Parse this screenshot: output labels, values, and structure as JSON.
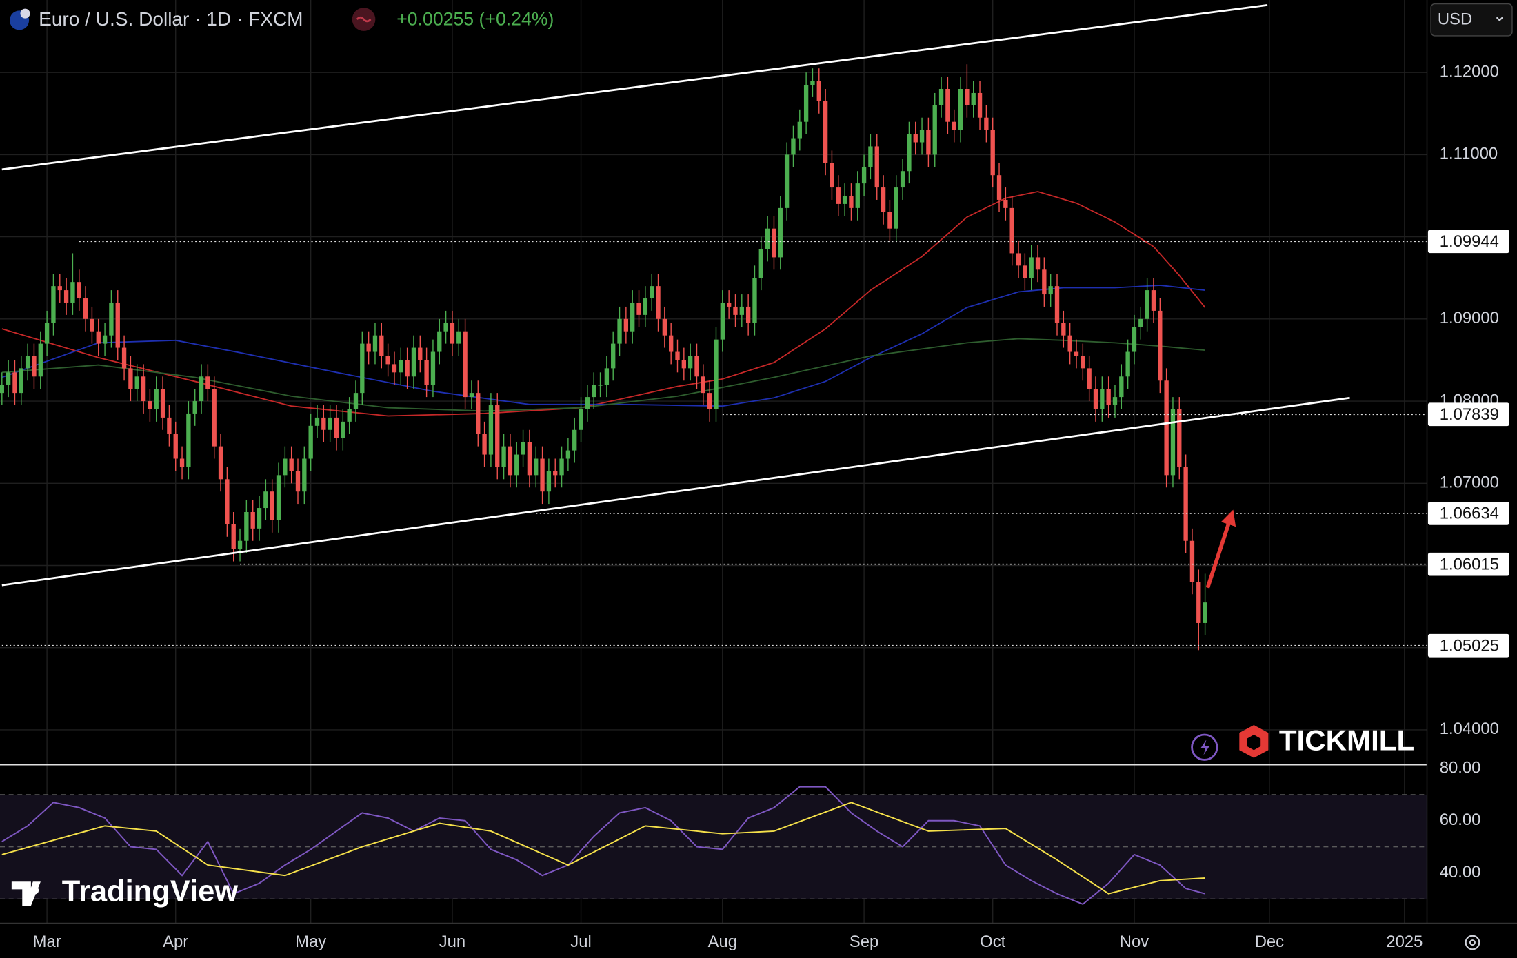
{
  "chart_data": {
    "type": "candlestick",
    "title": "Euro / U.S. Dollar · 1D · FXCM",
    "change": "+0.00255 (+0.24%)",
    "currency": "USD",
    "brand": "TICKMILL",
    "watermark": "TradingView",
    "colors": {
      "up": "#4caf50",
      "down": "#ef5350"
    },
    "open": [
      1.081,
      1.082,
      1.0835,
      1.081,
      1.084,
      1.0855,
      1.083,
      1.087,
      1.0895,
      1.094,
      1.0935,
      1.092,
      1.0945,
      1.0925,
      1.09,
      1.0885,
      1.087,
      1.088,
      1.092,
      1.0865,
      1.084,
      1.0815,
      1.083,
      1.08,
      1.079,
      1.0815,
      1.078,
      1.076,
      1.073,
      1.072,
      1.0785,
      1.08,
      1.083,
      1.0815,
      1.0745,
      1.0705,
      1.065,
      1.062,
      1.063,
      1.0665,
      1.0645,
      1.067,
      1.069,
      1.0655,
      1.071,
      1.073,
      1.0715,
      1.069,
      1.073,
      1.077,
      1.078,
      1.0765,
      1.078,
      1.0755,
      1.0775,
      1.079,
      1.081,
      1.087,
      1.086,
      1.088,
      1.0855,
      1.0845,
      1.0835,
      1.085,
      1.083,
      1.0865,
      1.085,
      1.082,
      1.086,
      1.0885,
      1.0895,
      1.087,
      1.0885,
      1.0805,
      1.081,
      1.076,
      1.0735,
      1.0795,
      1.072,
      1.0745,
      1.071,
      1.0735,
      1.075,
      1.071,
      1.073,
      1.069,
      1.0715,
      1.071,
      1.073,
      1.074,
      1.0765,
      1.079,
      1.0805,
      1.082,
      1.082,
      1.084,
      1.087,
      1.09,
      1.0885,
      1.092,
      1.0905,
      1.0925,
      1.094,
      1.09,
      1.088,
      1.086,
      1.085,
      1.084,
      1.0855,
      1.083,
      1.081,
      1.079,
      1.0875,
      1.092,
      1.0915,
      1.0905,
      1.0915,
      1.0895,
      1.095,
      1.0985,
      1.101,
      1.0975,
      1.1035,
      1.11,
      1.112,
      1.114,
      1.1185,
      1.119,
      1.1165,
      1.109,
      1.106,
      1.104,
      1.105,
      1.1035,
      1.1065,
      1.1085,
      1.111,
      1.106,
      1.103,
      1.101,
      1.106,
      1.108,
      1.1125,
      1.1115,
      1.113,
      1.11,
      1.116,
      1.118,
      1.114,
      1.113,
      1.118,
      1.116,
      1.1175,
      1.1145,
      1.113,
      1.1075,
      1.1045,
      1.1035,
      1.098,
      1.0965,
      1.095,
      1.0975,
      1.096,
      1.093,
      1.094,
      1.0895,
      1.088,
      1.086,
      1.0855,
      1.084,
      1.0815,
      1.079,
      1.0815,
      1.0795,
      1.0805,
      1.083,
      1.086,
      1.089,
      1.09,
      1.0935,
      1.091,
      1.0825,
      1.071,
      1.079,
      1.072,
      1.063,
      1.058,
      1.053
    ],
    "high": [
      1.0835,
      1.085,
      1.085,
      1.0855,
      1.087,
      1.087,
      1.0885,
      1.091,
      1.0955,
      1.0955,
      1.095,
      1.098,
      1.096,
      1.094,
      1.0915,
      1.09,
      1.0895,
      1.0935,
      1.0935,
      1.088,
      1.0855,
      1.0845,
      1.0845,
      1.0815,
      1.083,
      1.083,
      1.0795,
      1.0775,
      1.0745,
      1.08,
      1.0815,
      1.0845,
      1.0845,
      1.083,
      1.076,
      1.072,
      1.0665,
      1.0645,
      1.068,
      1.068,
      1.0685,
      1.0705,
      1.0705,
      1.0725,
      1.0745,
      1.0745,
      1.073,
      1.0745,
      1.0785,
      1.0795,
      1.0795,
      1.0795,
      1.0795,
      1.079,
      1.0805,
      1.0825,
      1.0885,
      1.0885,
      1.0895,
      1.0895,
      1.087,
      1.086,
      1.0865,
      1.0865,
      1.088,
      1.088,
      1.0865,
      1.0875,
      1.09,
      1.091,
      1.091,
      1.09,
      1.09,
      1.0825,
      1.0825,
      1.0775,
      1.081,
      1.081,
      1.076,
      1.076,
      1.075,
      1.0765,
      1.0765,
      1.0745,
      1.0745,
      1.073,
      1.073,
      1.0745,
      1.0755,
      1.078,
      1.0805,
      1.082,
      1.0835,
      1.0835,
      1.0855,
      1.0885,
      1.0915,
      1.0915,
      1.0935,
      1.0935,
      1.094,
      1.0955,
      1.0955,
      1.0915,
      1.0895,
      1.0875,
      1.0865,
      1.087,
      1.087,
      1.0845,
      1.0825,
      1.089,
      1.0935,
      1.0935,
      1.093,
      1.093,
      1.093,
      1.0965,
      1.1,
      1.1025,
      1.1025,
      1.105,
      1.1115,
      1.1135,
      1.1155,
      1.12,
      1.1205,
      1.1205,
      1.118,
      1.1105,
      1.1075,
      1.1065,
      1.1065,
      1.108,
      1.11,
      1.1125,
      1.1125,
      1.1075,
      1.1045,
      1.1075,
      1.1095,
      1.114,
      1.114,
      1.1145,
      1.1145,
      1.1175,
      1.1195,
      1.1195,
      1.1155,
      1.1195,
      1.121,
      1.119,
      1.119,
      1.116,
      1.1145,
      1.109,
      1.106,
      1.105,
      1.0995,
      1.098,
      1.099,
      1.099,
      1.0975,
      1.0955,
      1.0955,
      1.091,
      1.0895,
      1.0875,
      1.087,
      1.0855,
      1.083,
      1.083,
      1.083,
      1.082,
      1.0845,
      1.0875,
      1.0905,
      1.0915,
      1.095,
      1.095,
      1.0925,
      1.084,
      1.0805,
      1.0805,
      1.0735,
      1.0645,
      1.0595,
      1.059
    ],
    "low": [
      1.0795,
      1.0805,
      1.0795,
      1.0795,
      1.0825,
      1.0815,
      1.0815,
      1.0855,
      1.088,
      1.092,
      1.0905,
      1.0905,
      1.091,
      1.0885,
      1.087,
      1.0855,
      1.0855,
      1.0865,
      1.085,
      1.0825,
      1.08,
      1.08,
      1.0785,
      1.0775,
      1.0775,
      1.0765,
      1.0745,
      1.0715,
      1.0705,
      1.0705,
      1.077,
      1.0785,
      1.08,
      1.073,
      1.069,
      1.0635,
      1.0605,
      1.0605,
      1.0615,
      1.063,
      1.063,
      1.0655,
      1.064,
      1.064,
      1.0695,
      1.07,
      1.0675,
      1.0675,
      1.0715,
      1.0755,
      1.075,
      1.075,
      1.074,
      1.074,
      1.076,
      1.0775,
      1.0795,
      1.0845,
      1.0845,
      1.084,
      1.083,
      1.082,
      1.082,
      1.0815,
      1.0815,
      1.0835,
      1.0805,
      1.0805,
      1.0845,
      1.087,
      1.0855,
      1.0855,
      1.079,
      1.079,
      1.0745,
      1.072,
      1.072,
      1.0705,
      1.0705,
      1.0695,
      1.0695,
      1.072,
      1.0695,
      1.0695,
      1.0675,
      1.0675,
      1.0695,
      1.0695,
      1.0715,
      1.0725,
      1.075,
      1.0775,
      1.079,
      1.0805,
      1.0805,
      1.0825,
      1.0855,
      1.087,
      1.087,
      1.089,
      1.089,
      1.091,
      1.0885,
      1.0865,
      1.0845,
      1.0835,
      1.0825,
      1.0825,
      1.0815,
      1.0795,
      1.0775,
      1.0775,
      1.086,
      1.09,
      1.089,
      1.089,
      1.088,
      1.088,
      1.0935,
      1.097,
      1.096,
      1.096,
      1.102,
      1.1085,
      1.1105,
      1.1125,
      1.117,
      1.115,
      1.1075,
      1.1045,
      1.1025,
      1.1025,
      1.102,
      1.102,
      1.105,
      1.107,
      1.1045,
      1.1015,
      1.0995,
      1.0995,
      1.1045,
      1.1065,
      1.11,
      1.11,
      1.1085,
      1.1085,
      1.1145,
      1.1125,
      1.1115,
      1.1115,
      1.1145,
      1.1145,
      1.113,
      1.1115,
      1.106,
      1.103,
      1.102,
      1.0965,
      1.095,
      1.0935,
      1.0935,
      1.0945,
      1.0915,
      1.0915,
      1.088,
      1.0865,
      1.0845,
      1.084,
      1.0825,
      1.08,
      1.0775,
      1.0775,
      1.078,
      1.078,
      1.079,
      1.0815,
      1.0845,
      1.0875,
      1.0885,
      1.0895,
      1.081,
      1.0695,
      1.0695,
      1.0705,
      1.0615,
      1.0565,
      1.0497,
      1.0515
    ],
    "close": [
      1.082,
      1.0835,
      1.081,
      1.084,
      1.0855,
      1.083,
      1.087,
      1.0895,
      1.094,
      1.0935,
      1.092,
      1.0945,
      1.0925,
      1.09,
      1.0885,
      1.087,
      1.088,
      1.092,
      1.0865,
      1.084,
      1.0815,
      1.083,
      1.08,
      1.079,
      1.0815,
      1.078,
      1.076,
      1.073,
      1.072,
      1.0785,
      1.08,
      1.083,
      1.0815,
      1.0745,
      1.0705,
      1.065,
      1.062,
      1.063,
      1.0665,
      1.0645,
      1.067,
      1.069,
      1.0655,
      1.071,
      1.073,
      1.0715,
      1.069,
      1.073,
      1.077,
      1.078,
      1.0765,
      1.078,
      1.0755,
      1.0775,
      1.079,
      1.081,
      1.087,
      1.086,
      1.088,
      1.0855,
      1.0845,
      1.0835,
      1.085,
      1.083,
      1.0865,
      1.085,
      1.082,
      1.086,
      1.0885,
      1.0895,
      1.087,
      1.0885,
      1.0805,
      1.081,
      1.076,
      1.0735,
      1.0795,
      1.072,
      1.0745,
      1.071,
      1.0735,
      1.075,
      1.071,
      1.073,
      1.069,
      1.0715,
      1.071,
      1.073,
      1.074,
      1.0765,
      1.079,
      1.0805,
      1.082,
      1.082,
      1.084,
      1.087,
      1.09,
      1.0885,
      1.092,
      1.0905,
      1.0925,
      1.094,
      1.09,
      1.088,
      1.086,
      1.085,
      1.084,
      1.0855,
      1.083,
      1.081,
      1.079,
      1.0875,
      1.092,
      1.0915,
      1.0905,
      1.0915,
      1.0895,
      1.095,
      1.0985,
      1.101,
      1.0975,
      1.1035,
      1.11,
      1.112,
      1.114,
      1.1185,
      1.119,
      1.1165,
      1.109,
      1.106,
      1.104,
      1.105,
      1.1035,
      1.1065,
      1.1085,
      1.111,
      1.106,
      1.103,
      1.101,
      1.106,
      1.108,
      1.1125,
      1.1115,
      1.113,
      1.11,
      1.116,
      1.118,
      1.114,
      1.113,
      1.118,
      1.116,
      1.1175,
      1.1145,
      1.113,
      1.1075,
      1.1045,
      1.1035,
      1.098,
      1.0965,
      1.095,
      1.0975,
      1.096,
      1.093,
      1.094,
      1.0895,
      1.088,
      1.086,
      1.0855,
      1.084,
      1.0815,
      1.079,
      1.0815,
      1.0795,
      1.0805,
      1.083,
      1.086,
      1.089,
      1.09,
      1.0935,
      1.091,
      1.0825,
      1.071,
      1.079,
      1.072,
      1.063,
      1.058,
      1.053,
      1.0555
    ],
    "xlim": [
      -0.3,
      221.5
    ],
    "xticks": [
      {
        "value": 7,
        "label": "Mar"
      },
      {
        "value": 27,
        "label": "Apr"
      },
      {
        "value": 48,
        "label": "May"
      },
      {
        "value": 70,
        "label": "Jun"
      },
      {
        "value": 90,
        "label": "Jul"
      },
      {
        "value": 112,
        "label": "Aug"
      },
      {
        "value": 134,
        "label": "Sep"
      },
      {
        "value": 154,
        "label": "Oct"
      },
      {
        "value": 176,
        "label": "Nov"
      },
      {
        "value": 197,
        "label": "Dec"
      },
      {
        "value": 218,
        "label": "2025"
      }
    ],
    "ylim": [
      1.03588,
      1.12882
    ],
    "yticks": [
      {
        "value": 1.04,
        "label": "1.04000"
      },
      {
        "value": 1.05,
        "label": "1.05000"
      },
      {
        "value": 1.06,
        "label": "1.06000"
      },
      {
        "value": 1.07,
        "label": "1.07000"
      },
      {
        "value": 1.08,
        "label": "1.08000"
      },
      {
        "value": 1.09,
        "label": "1.09000"
      },
      {
        "value": 1.1,
        "label": "1.10000"
      },
      {
        "value": 1.11,
        "label": "1.11000"
      },
      {
        "value": 1.12,
        "label": "1.12000"
      }
    ],
    "grid": true,
    "moving_averages": [
      {
        "color": "#c62828",
        "x": [
          0,
          15,
          30,
          45,
          60,
          75,
          90,
          97,
          105,
          112,
          120,
          128,
          135,
          143,
          150,
          156,
          161,
          167,
          173,
          179,
          183,
          187
        ],
        "values": [
          1.0888,
          1.0853,
          1.0824,
          1.0794,
          1.0782,
          1.0785,
          1.0792,
          1.0804,
          1.0818,
          1.0827,
          1.0847,
          1.0888,
          1.0935,
          1.0976,
          1.1024,
          1.1047,
          1.1055,
          1.1041,
          1.1018,
          1.0988,
          1.0953,
          1.0914
        ]
      },
      {
        "color": "#1e2fb0",
        "x": [
          0,
          15,
          27,
          37,
          52,
          67,
          82,
          97,
          112,
          120,
          128,
          135,
          143,
          150,
          158,
          165,
          173,
          180,
          187
        ],
        "values": [
          1.0829,
          1.0871,
          1.0874,
          1.0859,
          1.0835,
          1.0812,
          1.0796,
          1.0796,
          1.0794,
          1.0804,
          1.0824,
          1.0853,
          1.0882,
          1.0914,
          1.0933,
          1.0938,
          1.0938,
          1.0941,
          1.0935
        ]
      },
      {
        "color": "#2e5d2e",
        "x": [
          0,
          15,
          30,
          45,
          60,
          75,
          90,
          105,
          120,
          135,
          150,
          158,
          165,
          173,
          180,
          187
        ],
        "values": [
          1.0835,
          1.0844,
          1.0829,
          1.0806,
          1.0792,
          1.0788,
          1.0792,
          1.0806,
          1.0829,
          1.0855,
          1.0871,
          1.0876,
          1.0874,
          1.0871,
          1.0867,
          1.0862
        ]
      }
    ],
    "price_levels": [
      {
        "value": 1.09944,
        "label": "1.09944",
        "from": 12
      },
      {
        "value": 1.07839,
        "label": "1.07839",
        "from": 112
      },
      {
        "value": 1.06634,
        "label": "1.06634",
        "from": 83
      },
      {
        "value": 1.06015,
        "label": "1.06015",
        "from": 37
      },
      {
        "value": 1.05025,
        "label": "1.05025",
        "from": 0
      }
    ],
    "trendlines": [
      {
        "x": [
          0,
          196.7
        ],
        "y": [
          1.1082,
          1.1282
        ]
      },
      {
        "x": [
          0,
          209.5
        ],
        "y": [
          1.0576,
          1.0804
        ]
      }
    ],
    "arrow": {
      "color": "#e53935",
      "x": [
        187.4,
        191
      ],
      "y": [
        1.0573,
        1.0659
      ]
    },
    "indicator": {
      "type": "line",
      "ylim": [
        20.7,
        80
      ],
      "yticks": [
        {
          "value": 80,
          "label": "80.00"
        },
        {
          "value": 60,
          "label": "60.00"
        },
        {
          "value": 40,
          "label": "40.00"
        }
      ],
      "bands": [
        70,
        50,
        30
      ],
      "series": [
        {
          "color": "#7e57c2",
          "x": [
            0,
            4,
            8,
            12,
            16,
            20,
            24,
            28,
            32,
            36,
            40,
            44,
            48,
            52,
            56,
            60,
            64,
            68,
            72,
            76,
            80,
            84,
            88,
            92,
            96,
            100,
            104,
            108,
            112,
            116,
            120,
            124,
            128,
            132,
            136,
            140,
            144,
            148,
            152,
            156,
            160,
            164,
            168,
            172,
            176,
            180,
            184,
            187
          ],
          "values": [
            52,
            58,
            67,
            65,
            61,
            50,
            49,
            39,
            52,
            32,
            36,
            43,
            49,
            56,
            63,
            61,
            56,
            61,
            60,
            49,
            45,
            39,
            43,
            54,
            63,
            65,
            60,
            50,
            49,
            61,
            65,
            73,
            73,
            63,
            56,
            50,
            60,
            60,
            58,
            43,
            37,
            32,
            28,
            36,
            47,
            43,
            34,
            32
          ]
        },
        {
          "color": "#f5e04a",
          "x": [
            0,
            16,
            24,
            32,
            44,
            56,
            68,
            76,
            88,
            100,
            112,
            120,
            132,
            144,
            156,
            164,
            172,
            180,
            187
          ],
          "values": [
            47,
            58,
            56,
            43,
            39,
            50,
            59,
            56,
            43,
            58,
            55,
            56,
            67,
            56,
            57,
            45,
            32,
            37,
            38
          ]
        }
      ]
    }
  }
}
